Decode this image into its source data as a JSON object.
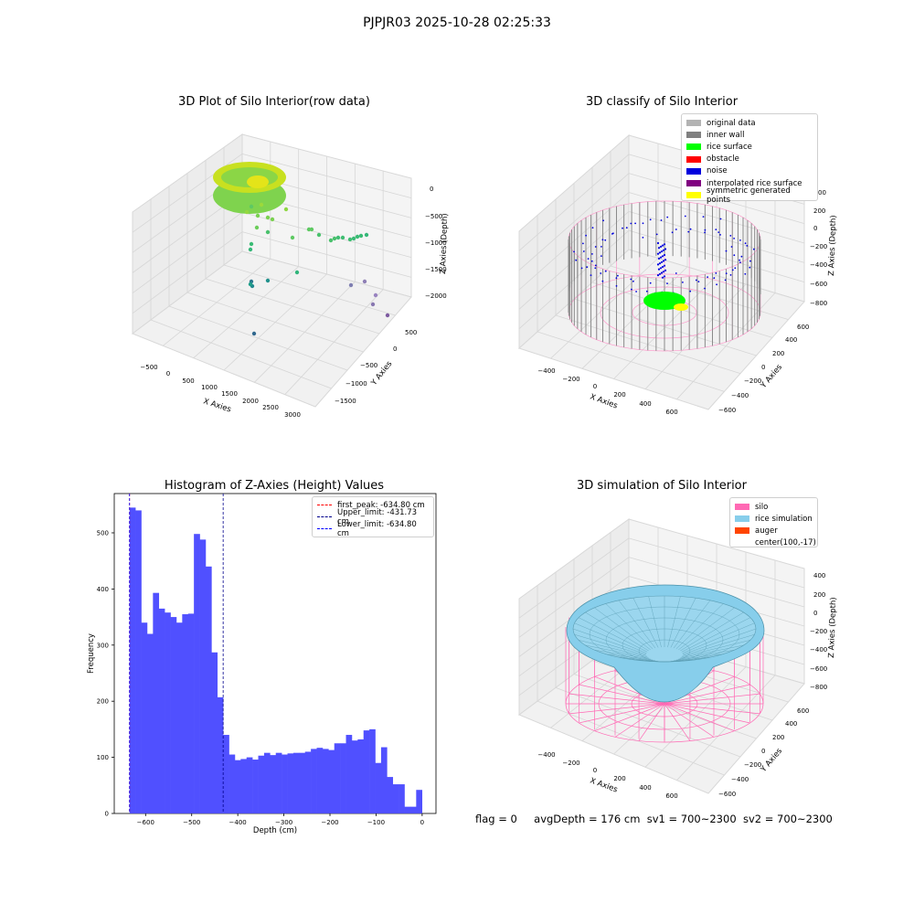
{
  "suptitle": "PJPJR03 2025-10-28 02:25:33",
  "status": {
    "flag": "flag = 0",
    "avg_depth": "avgDepth = 176 cm",
    "sv1": "sv1 = 700~2300",
    "sv2": "sv2 = 700~2300"
  },
  "panels": {
    "raw": {
      "title": "3D Plot of Silo Interior(row data)",
      "xlabel": "X Axies",
      "ylabel": "Y Axies",
      "zlabel": "Z Axies (Depth)",
      "xticks": [
        "−500",
        "0",
        "500",
        "1000",
        "1500",
        "2000",
        "2500",
        "3000"
      ],
      "yticks": [
        "500",
        "0",
        "−500",
        "−1000",
        "−1500"
      ],
      "zticks": [
        "0",
        "−500",
        "−1000",
        "−1500",
        "−2000"
      ]
    },
    "classify": {
      "title": "3D classify of Silo Interior",
      "xlabel": "X Axies",
      "ylabel": "Y Axies",
      "zlabel": "Z Axies (Depth)",
      "xticks": [
        "−400",
        "−200",
        "0",
        "200",
        "400",
        "600"
      ],
      "yticks": [
        "600",
        "400",
        "200",
        "0",
        "−200",
        "−400",
        "−600"
      ],
      "zticks": [
        "200",
        "0",
        "−200",
        "−400",
        "−600",
        "−800"
      ],
      "zticks_partial_top": "00",
      "legend": [
        {
          "label": "original data",
          "color": "#b3b3b3"
        },
        {
          "label": "inner wall",
          "color": "#808080"
        },
        {
          "label": "rice surface",
          "color": "#00ff00"
        },
        {
          "label": "obstacle",
          "color": "#ff0000"
        },
        {
          "label": "noise",
          "color": "#0000dd"
        },
        {
          "label": "interpolated rice surface",
          "color": "#800080"
        },
        {
          "label": "symmetric generated points",
          "color": "#ffff00"
        }
      ]
    },
    "simulation": {
      "title": "3D simulation of Silo Interior",
      "xlabel": "X Axies",
      "ylabel": "Y Axies",
      "zlabel": "Z Axies (Depth)",
      "xticks": [
        "−400",
        "−200",
        "0",
        "200",
        "400",
        "600"
      ],
      "yticks": [
        "600",
        "400",
        "200",
        "0",
        "−200",
        "−400",
        "−600"
      ],
      "zticks": [
        "400",
        "200",
        "0",
        "−200",
        "−400",
        "−600",
        "−800"
      ],
      "legend": [
        {
          "label": "silo",
          "color": "#ff69b4"
        },
        {
          "label": "rice simulation",
          "color": "#87ceeb"
        },
        {
          "label": "auger",
          "color": "#ff4500"
        },
        {
          "label": "center(100,-17)",
          "color": ""
        }
      ]
    }
  },
  "chart_data": [
    {
      "type": "bar",
      "title": "Histogram of Z-Axies (Height) Values",
      "xlabel": "Depth (cm)",
      "ylabel": "Frequency",
      "xlim": [
        -668,
        30
      ],
      "ylim": [
        0,
        570
      ],
      "xticks": [
        -600,
        -500,
        -400,
        -300,
        -200,
        -100,
        0
      ],
      "yticks": [
        0,
        100,
        200,
        300,
        400,
        500
      ],
      "bar_color": "#5050ff",
      "bin_start": -634.8,
      "bin_width": 12.69,
      "values": [
        545,
        540,
        340,
        320,
        393,
        365,
        358,
        350,
        340,
        355,
        356,
        498,
        488,
        440,
        287,
        207,
        140,
        105,
        95,
        97,
        100,
        96,
        103,
        108,
        104,
        108,
        105,
        107,
        108,
        108,
        110,
        115,
        117,
        115,
        113,
        125,
        125,
        140,
        130,
        132,
        148,
        150,
        90,
        118,
        65,
        52,
        52,
        12,
        12,
        42
      ],
      "vlines": [
        {
          "label": "first_peak: -634.80 cm",
          "x": -634.8,
          "color": "#ff0000"
        },
        {
          "label": "Upper_limit: -431.73 cm",
          "x": -431.73,
          "color": "#00008b"
        },
        {
          "label": "Lower_limit: -634.80 cm",
          "x": -634.8,
          "color": "#0000ff"
        }
      ]
    }
  ]
}
